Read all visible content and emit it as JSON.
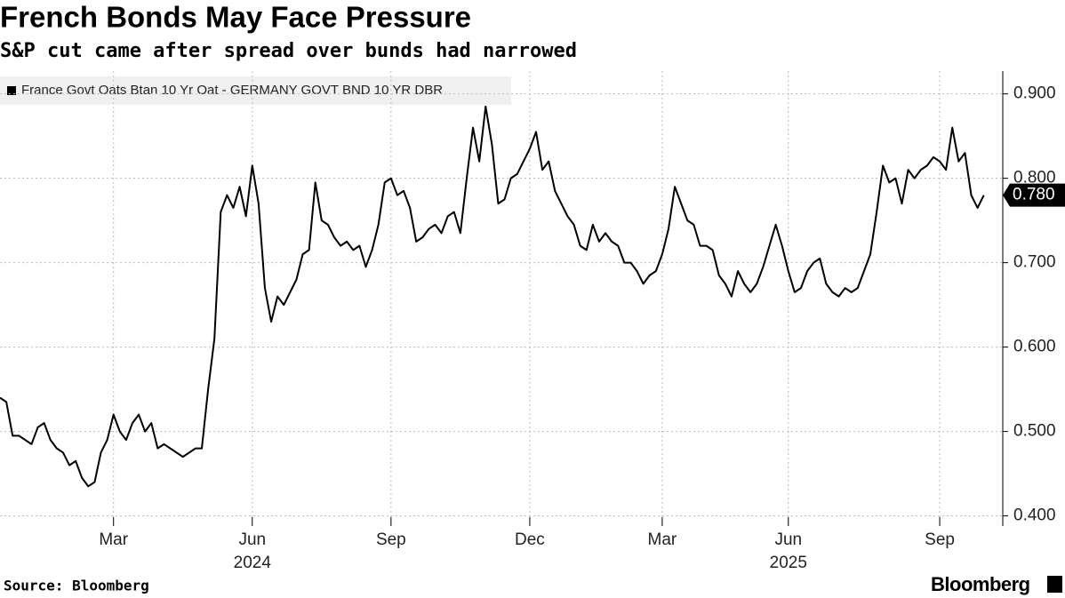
{
  "chart_data": {
    "type": "line",
    "title": "French Bonds May Face Pressure",
    "subtitle": "S&P cut came after spread over bunds had narrowed",
    "source": "Source: Bloomberg",
    "brand": "Bloomberg",
    "series": [
      {
        "name": "France Govt Oats Btan 10 Yr Oat - GERMANY GOVT BND 10 YR DBR",
        "color": "#000000",
        "values": [
          0.54,
          0.535,
          0.495,
          0.495,
          0.49,
          0.485,
          0.505,
          0.51,
          0.49,
          0.48,
          0.475,
          0.46,
          0.465,
          0.445,
          0.435,
          0.44,
          0.475,
          0.49,
          0.52,
          0.5,
          0.49,
          0.51,
          0.52,
          0.5,
          0.51,
          0.48,
          0.485,
          0.48,
          0.475,
          0.47,
          0.475,
          0.48,
          0.48,
          0.55,
          0.61,
          0.76,
          0.78,
          0.765,
          0.79,
          0.755,
          0.815,
          0.77,
          0.67,
          0.63,
          0.66,
          0.65,
          0.665,
          0.68,
          0.71,
          0.715,
          0.795,
          0.75,
          0.745,
          0.73,
          0.72,
          0.725,
          0.715,
          0.72,
          0.695,
          0.715,
          0.745,
          0.795,
          0.8,
          0.78,
          0.785,
          0.765,
          0.725,
          0.73,
          0.74,
          0.745,
          0.735,
          0.755,
          0.76,
          0.735,
          0.8,
          0.86,
          0.82,
          0.885,
          0.84,
          0.77,
          0.775,
          0.8,
          0.805,
          0.82,
          0.835,
          0.855,
          0.81,
          0.82,
          0.785,
          0.77,
          0.755,
          0.745,
          0.72,
          0.715,
          0.745,
          0.725,
          0.735,
          0.725,
          0.72,
          0.7,
          0.7,
          0.69,
          0.675,
          0.685,
          0.69,
          0.71,
          0.74,
          0.79,
          0.77,
          0.75,
          0.745,
          0.72,
          0.72,
          0.715,
          0.685,
          0.675,
          0.66,
          0.69,
          0.675,
          0.665,
          0.675,
          0.695,
          0.72,
          0.745,
          0.72,
          0.69,
          0.665,
          0.67,
          0.69,
          0.7,
          0.705,
          0.675,
          0.665,
          0.66,
          0.67,
          0.665,
          0.67,
          0.69,
          0.71,
          0.76,
          0.815,
          0.795,
          0.8,
          0.77,
          0.81,
          0.8,
          0.81,
          0.815,
          0.825,
          0.82,
          0.81,
          0.86,
          0.82,
          0.83,
          0.78,
          0.765,
          0.78
        ]
      }
    ],
    "end_label": "0.780",
    "xlim": [
      0,
      159
    ],
    "xticks": [
      {
        "value": 18,
        "label": "Mar"
      },
      {
        "value": 40,
        "label": "Jun"
      },
      {
        "value": 62,
        "label": "Sep"
      },
      {
        "value": 84,
        "label": "Dec"
      },
      {
        "value": 105,
        "label": "Mar"
      },
      {
        "value": 125,
        "label": "Jun"
      },
      {
        "value": 149,
        "label": "Sep"
      }
    ],
    "year_labels": [
      {
        "value": 40,
        "label": "2024"
      },
      {
        "value": 125,
        "label": "2025"
      }
    ],
    "ylim": [
      0.388,
      0.927
    ],
    "yticks": [
      {
        "value": 0.4,
        "label": "0.400"
      },
      {
        "value": 0.5,
        "label": "0.500"
      },
      {
        "value": 0.6,
        "label": "0.600"
      },
      {
        "value": 0.7,
        "label": "0.700"
      },
      {
        "value": 0.8,
        "label": "0.800"
      },
      {
        "value": 0.9,
        "label": "0.900"
      }
    ],
    "grid": true
  }
}
